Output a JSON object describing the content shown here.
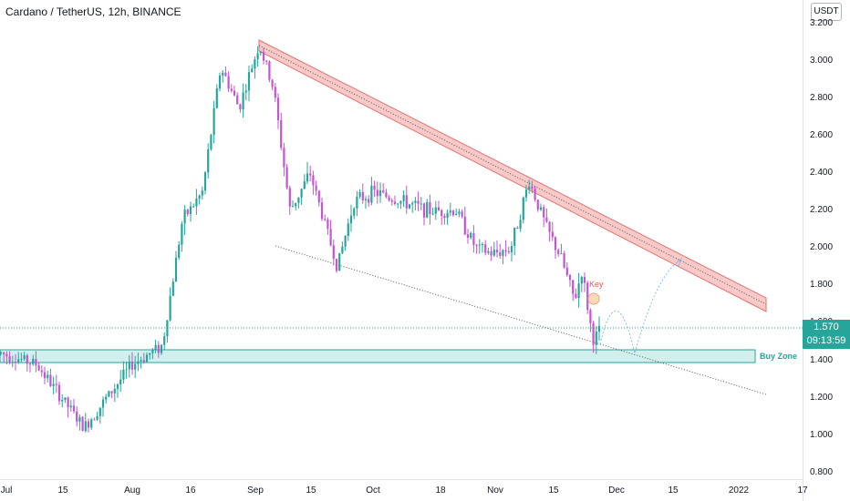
{
  "header": {
    "title": "Cardano / TetherUS, 12h, BINANCE",
    "currency_button": "USDT"
  },
  "y_axis": {
    "labels": [
      "3.200",
      "3.000",
      "2.800",
      "2.600",
      "2.400",
      "2.200",
      "2.000",
      "1.800",
      "1.600",
      "1.400",
      "1.200",
      "1.000",
      "0.800"
    ]
  },
  "x_axis": {
    "labels": [
      "Jul",
      "15",
      "Aug",
      "16",
      "Sep",
      "15",
      "Oct",
      "18",
      "Nov",
      "15",
      "Dec",
      "15",
      "2022",
      "17"
    ]
  },
  "price_tag": {
    "price": "1.570",
    "countdown": "09:13:59"
  },
  "annotations": {
    "buy_zone": "Buy Zone",
    "key": "Key"
  },
  "colors": {
    "up": "#26a69a",
    "down": "#c653d4",
    "resistance_fill": "#f8c9c7",
    "resistance_stroke": "#e57373",
    "support_fill": "#c9ece9",
    "support_stroke": "#26a69a",
    "price_line": "#26a69a"
  },
  "chart_data": {
    "type": "candlestick",
    "symbol": "Cardano / TetherUS",
    "interval": "12h",
    "exchange": "BINANCE",
    "ylim": [
      0.8,
      3.2
    ],
    "last_price": 1.57,
    "key_points": [
      {
        "x": "Jul",
        "y": 1.44
      },
      {
        "x": "Jul 20",
        "y": 1.04
      },
      {
        "x": "Aug",
        "y": 1.38
      },
      {
        "x": "Aug 16",
        "y": 2.15
      },
      {
        "x": "Aug 24",
        "y": 2.97
      },
      {
        "x": "Sep 2",
        "y": 3.09
      },
      {
        "x": "Sep 7",
        "y": 2.6
      },
      {
        "x": "Sep 20",
        "y": 1.9
      },
      {
        "x": "Oct",
        "y": 2.3
      },
      {
        "x": "Oct 18",
        "y": 2.2
      },
      {
        "x": "Nov",
        "y": 1.97
      },
      {
        "x": "Nov 9",
        "y": 2.36
      },
      {
        "x": "Nov 15",
        "y": 2.1
      },
      {
        "x": "Nov 20",
        "y": 1.72
      },
      {
        "x": "Nov 22",
        "y": 1.88
      },
      {
        "x": "Nov 26",
        "y": 1.51
      },
      {
        "x": "Nov 28",
        "y": 1.57
      }
    ],
    "buy_zone": [
      1.4,
      1.47
    ],
    "resistance_channel": {
      "from": {
        "x": "Sep 1",
        "y": 3.1
      },
      "to": {
        "x": "Dec 30",
        "y": 1.7
      }
    },
    "support_line": {
      "from": {
        "x": "Sep 7",
        "y": 2.0
      },
      "to": {
        "x": "Dec 30",
        "y": 1.23
      }
    }
  }
}
